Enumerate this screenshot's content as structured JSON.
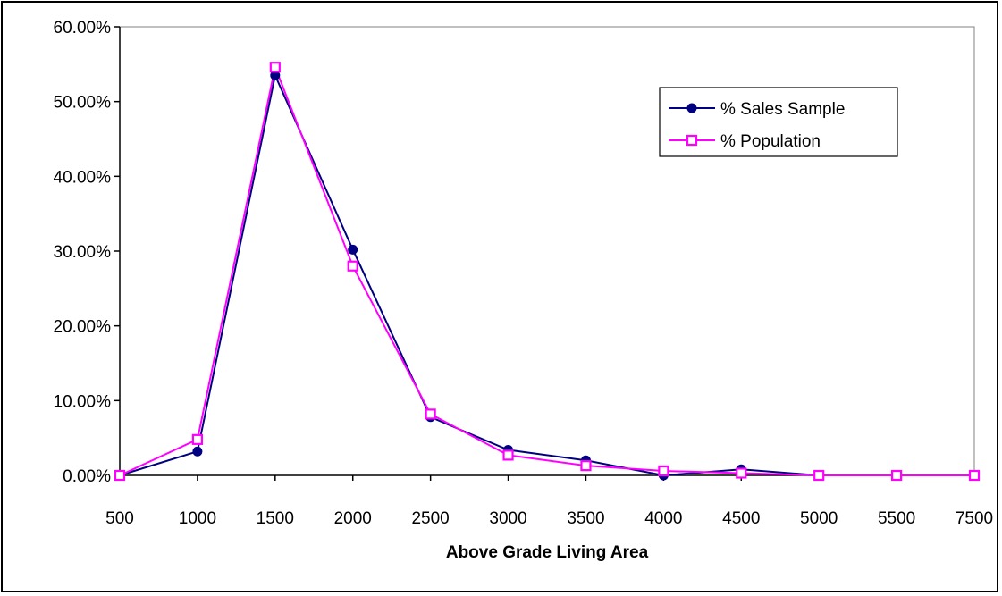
{
  "chart_data": {
    "type": "line",
    "title": "",
    "xlabel": "Above Grade Living Area",
    "ylabel": "",
    "categories": [
      "500",
      "1000",
      "1500",
      "2000",
      "2500",
      "3000",
      "3500",
      "4000",
      "4500",
      "5000",
      "5500",
      "7500"
    ],
    "ylim": [
      0,
      0.6
    ],
    "y_ticks": [
      "0.00%",
      "10.00%",
      "20.00%",
      "30.00%",
      "40.00%",
      "50.00%",
      "60.00%"
    ],
    "grid": false,
    "legend_position": "top-right",
    "series": [
      {
        "name": "% Sales Sample",
        "color": "#000080",
        "marker": "circle",
        "values": [
          0.0,
          0.032,
          0.535,
          0.302,
          0.078,
          0.034,
          0.02,
          0.0,
          0.008,
          0.0,
          0.0,
          0.0
        ]
      },
      {
        "name": "% Population",
        "color": "#ff00ff",
        "marker": "square",
        "values": [
          0.0,
          0.048,
          0.546,
          0.28,
          0.082,
          0.027,
          0.013,
          0.006,
          0.003,
          0.0,
          0.0,
          0.0
        ]
      }
    ]
  }
}
